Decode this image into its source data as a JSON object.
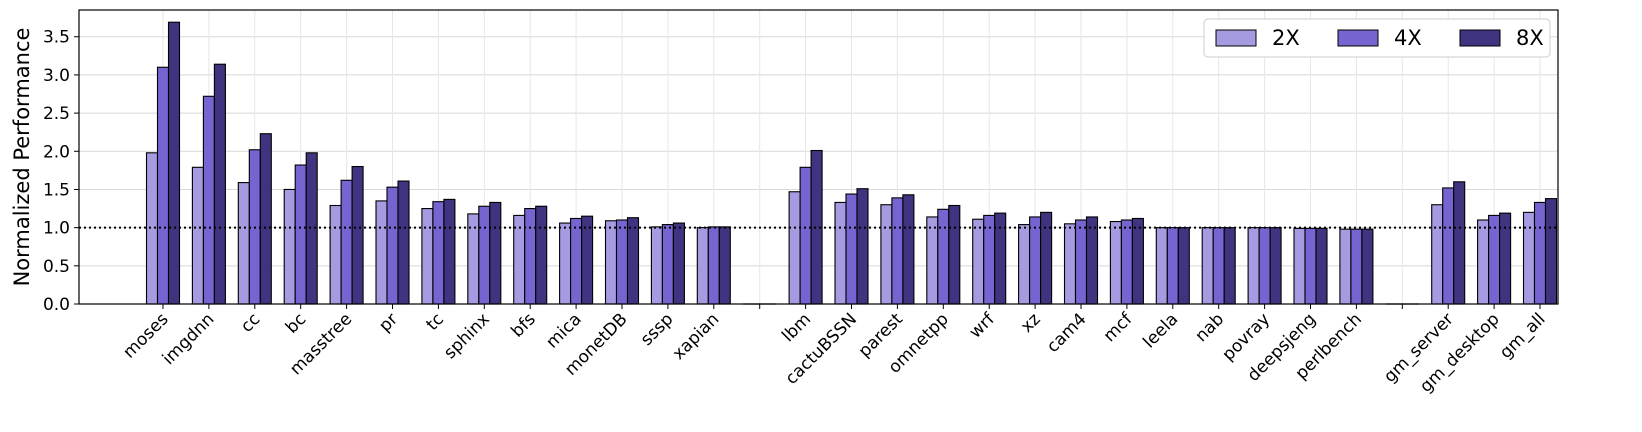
{
  "chart_data": {
    "type": "bar",
    "title": "",
    "xlabel": "",
    "ylabel": "Normalized Performance",
    "ylim": [
      0,
      3.85
    ],
    "yticks": [
      0.0,
      0.5,
      1.0,
      1.5,
      2.0,
      2.5,
      3.0,
      3.5
    ],
    "ytick_labels": [
      "0.0",
      "0.5",
      "1.0",
      "1.5",
      "2.0",
      "2.5",
      "3.0",
      "3.5"
    ],
    "grid": true,
    "legend": "top-right",
    "reference_line": {
      "y": 1.0,
      "style": "dotted"
    },
    "categories": [
      "moses",
      "imgdnn",
      "cc",
      "bc",
      "masstree",
      "pr",
      "tc",
      "sphinx",
      "bfs",
      "mica",
      "monetDB",
      "sssp",
      "xapian",
      "",
      "lbm",
      "cactuBSSN",
      "parest",
      "omnetpp",
      "wrf",
      "xz",
      "cam4",
      "mcf",
      "leela",
      "nab",
      "povray",
      "deepsjeng",
      "perlbench",
      "",
      "gm_server",
      "gm_desktop",
      "gm_all"
    ],
    "series": [
      {
        "name": "2X",
        "color": "#a59be0",
        "values": [
          1.98,
          1.79,
          1.59,
          1.5,
          1.29,
          1.35,
          1.25,
          1.18,
          1.16,
          1.06,
          1.09,
          1.01,
          1.0,
          0,
          1.47,
          1.33,
          1.3,
          1.14,
          1.11,
          1.04,
          1.05,
          1.08,
          1.0,
          1.0,
          1.0,
          0.99,
          0.98,
          0,
          1.3,
          1.1,
          1.2
        ]
      },
      {
        "name": "4X",
        "color": "#7664d0",
        "values": [
          3.1,
          2.72,
          2.02,
          1.82,
          1.62,
          1.53,
          1.34,
          1.28,
          1.25,
          1.12,
          1.1,
          1.04,
          1.01,
          0,
          1.79,
          1.44,
          1.39,
          1.24,
          1.16,
          1.14,
          1.1,
          1.1,
          1.0,
          1.0,
          1.0,
          0.99,
          0.98,
          0,
          1.52,
          1.16,
          1.33
        ]
      },
      {
        "name": "8X",
        "color": "#3f3480",
        "values": [
          3.69,
          3.14,
          2.23,
          1.98,
          1.8,
          1.61,
          1.37,
          1.33,
          1.28,
          1.15,
          1.13,
          1.06,
          1.01,
          0,
          2.01,
          1.51,
          1.43,
          1.29,
          1.19,
          1.2,
          1.14,
          1.12,
          1.0,
          1.0,
          1.0,
          0.99,
          0.98,
          0,
          1.6,
          1.19,
          1.38
        ]
      }
    ]
  }
}
